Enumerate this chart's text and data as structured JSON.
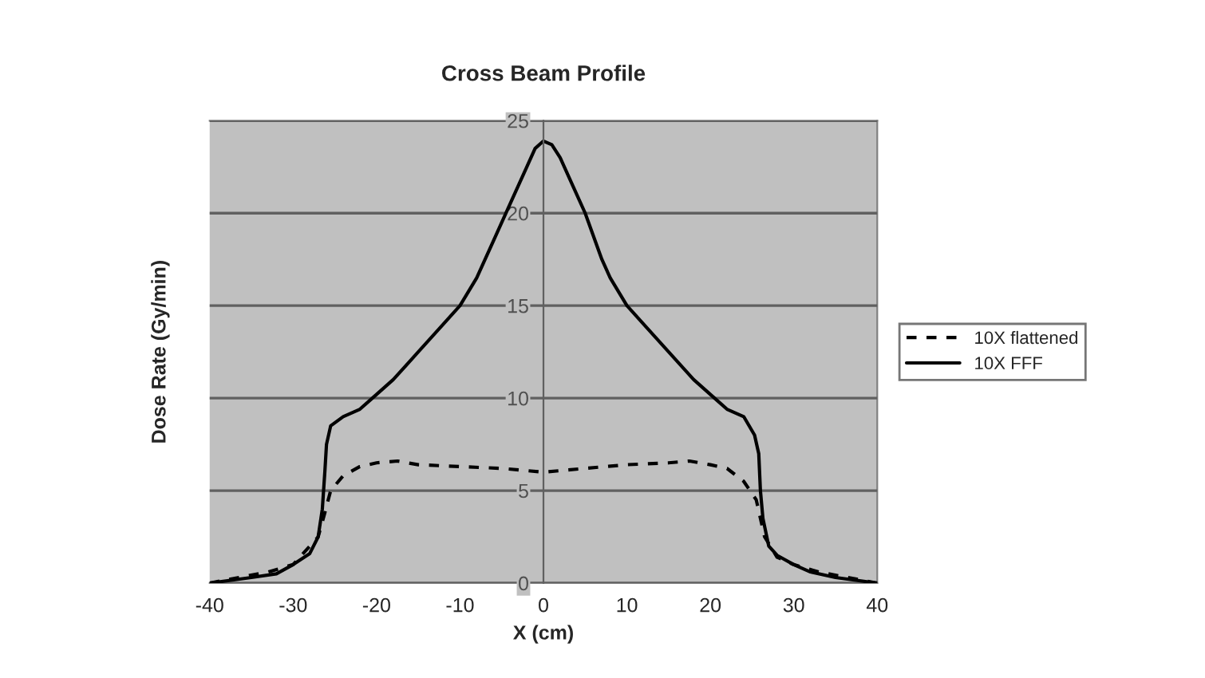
{
  "chart_data": {
    "type": "line",
    "title": "Cross Beam Profile",
    "xlabel": "X (cm)",
    "ylabel": "Dose Rate (Gy/min)",
    "xlim": [
      -40,
      40
    ],
    "xticks": [
      -40,
      -30,
      -20,
      -10,
      0,
      10,
      20,
      30,
      40
    ],
    "ylim": [
      0,
      25
    ],
    "yticks": [
      0,
      5,
      10,
      15,
      20,
      25
    ],
    "grid": "y",
    "legend": "right",
    "series": [
      {
        "name": "10X flattened",
        "color": "#000000",
        "line_style": "dashed",
        "x": [
          -40,
          -33,
          -30,
          -27,
          -26.2,
          -25.5,
          -24,
          -22,
          -20,
          -17.5,
          -15,
          -10,
          -5,
          0,
          5,
          10,
          15,
          17.5,
          20,
          22,
          24,
          25.5,
          26,
          26.5,
          28,
          30,
          33,
          40
        ],
        "values": [
          0,
          0.6,
          1.0,
          2.5,
          3.8,
          5,
          5.8,
          6.3,
          6.5,
          6.6,
          6.4,
          6.3,
          6.2,
          6.0,
          6.2,
          6.4,
          6.5,
          6.6,
          6.4,
          6.2,
          5.5,
          4.5,
          3.5,
          2.5,
          1.4,
          1.0,
          0.6,
          0
        ]
      },
      {
        "name": "10X FFF",
        "color": "#000000",
        "line_style": "solid",
        "x": [
          -40,
          -35,
          -32,
          -30,
          -28,
          -27,
          -26.5,
          -26.2,
          -26,
          -25.5,
          -24,
          -22,
          -20.5,
          -18,
          -15,
          -12,
          -10,
          -8,
          -6,
          -4,
          -2,
          -1,
          0,
          1,
          2,
          3,
          5,
          7,
          8,
          10,
          12,
          15,
          18,
          20.5,
          22,
          24,
          25.3,
          25.8,
          26,
          26.3,
          27,
          28,
          30,
          32,
          35,
          40
        ],
        "values": [
          0,
          0.3,
          0.5,
          1.0,
          1.6,
          2.5,
          4,
          6,
          7.5,
          8.5,
          9,
          9.4,
          10,
          11,
          12.5,
          14,
          15,
          16.5,
          18.5,
          20.5,
          22.5,
          23.5,
          23.9,
          23.7,
          23,
          22,
          20,
          17.5,
          16.5,
          15,
          14,
          12.5,
          11,
          10,
          9.4,
          9,
          8,
          7,
          5,
          3.5,
          2,
          1.5,
          1.0,
          0.6,
          0.3,
          0
        ]
      }
    ]
  }
}
